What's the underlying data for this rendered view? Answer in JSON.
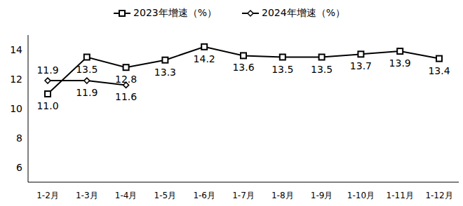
{
  "chart_data": {
    "type": "line",
    "categories": [
      "1-2月",
      "1-3月",
      "1-4月",
      "1-5月",
      "1-6月",
      "1-7月",
      "1-8月",
      "1-9月",
      "1-10月",
      "1-11月",
      "1-12月"
    ],
    "series": [
      {
        "name": "2023年增速（%）",
        "color": "#000000",
        "marker": "square",
        "line_style": "solid",
        "values": [
          11.0,
          13.5,
          12.8,
          13.3,
          14.2,
          13.6,
          13.5,
          13.5,
          13.7,
          13.9,
          13.4
        ],
        "value_labels": [
          "11.0",
          "13.5",
          "12.8",
          "13.3",
          "14.2",
          "13.6",
          "13.5",
          "13.5",
          "13.7",
          "13.9",
          "13.4"
        ]
      },
      {
        "name": "2024年增速（%）",
        "color": "#000000",
        "marker": "diamond",
        "line_style": "solid",
        "values": [
          11.9,
          11.9,
          11.6,
          null,
          null,
          null,
          null,
          null,
          null,
          null,
          null
        ],
        "value_labels": [
          "11.9",
          "11.9",
          "11.6",
          null,
          null,
          null,
          null,
          null,
          null,
          null,
          null
        ]
      }
    ],
    "ylim": [
      5,
      15
    ],
    "yticks": [
      6,
      8,
      10,
      12,
      14
    ],
    "grid": false,
    "legend": "top",
    "data_labels": true
  }
}
